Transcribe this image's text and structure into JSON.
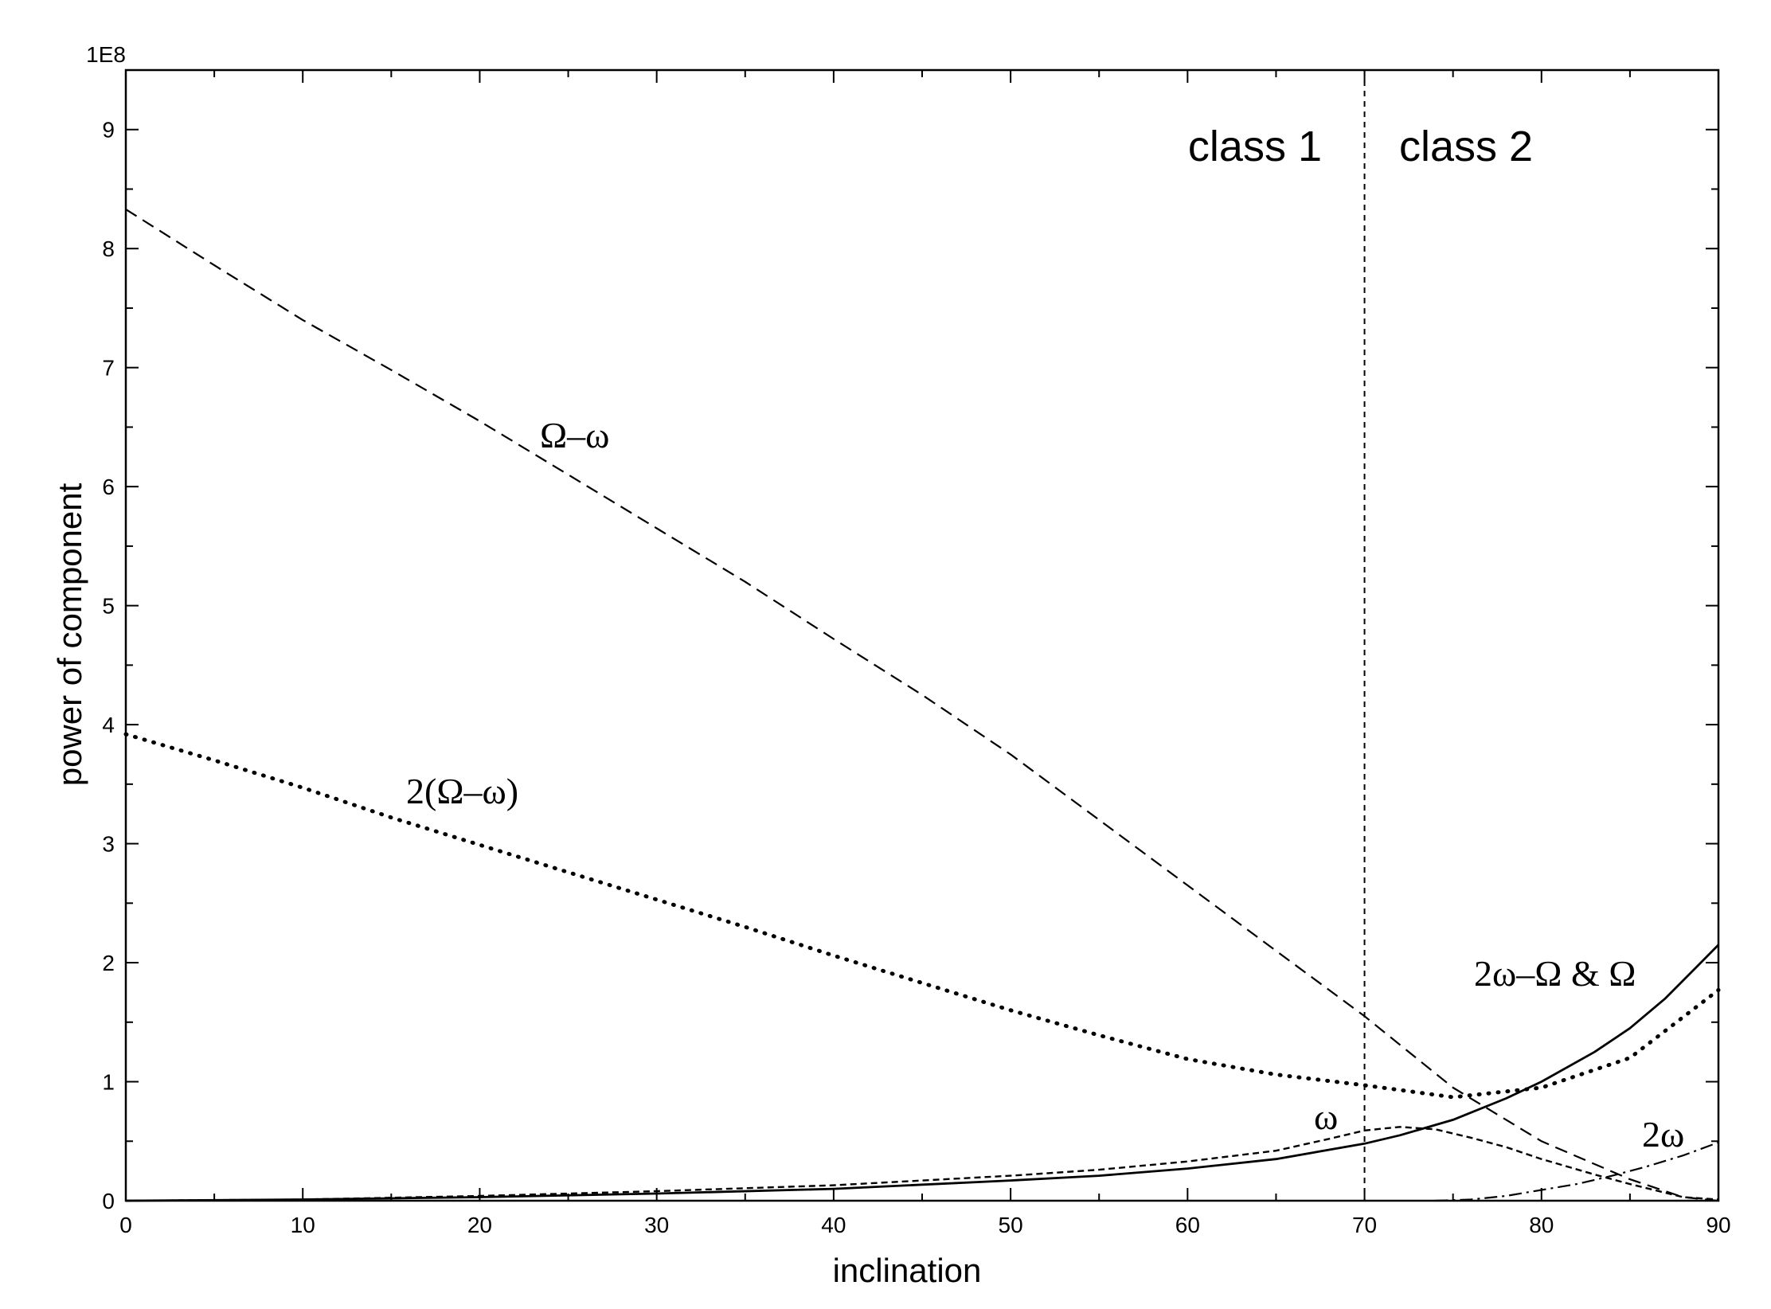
{
  "chart_data": {
    "type": "line",
    "xlabel": "inclination",
    "ylabel": "power of component",
    "y_multiplier_label": "1E8",
    "xlim": [
      0,
      90
    ],
    "ylim": [
      0,
      9.5
    ],
    "x_ticks": [
      "0",
      "10",
      "20",
      "30",
      "40",
      "50",
      "60",
      "70",
      "80",
      "90"
    ],
    "y_ticks": [
      "0",
      "1",
      "2",
      "3",
      "4",
      "5",
      "6",
      "7",
      "8",
      "9"
    ],
    "grid": false,
    "divider": {
      "x": 70
    },
    "region_labels": [
      "class 1",
      "class 2"
    ],
    "series": [
      {
        "name": "Ω–ω",
        "style": "dashed",
        "points": [
          [
            0,
            8.33
          ],
          [
            5,
            7.86
          ],
          [
            10,
            7.4
          ],
          [
            15,
            6.98
          ],
          [
            20,
            6.55
          ],
          [
            25,
            6.1
          ],
          [
            30,
            5.65
          ],
          [
            35,
            5.2
          ],
          [
            40,
            4.72
          ],
          [
            45,
            4.25
          ],
          [
            50,
            3.75
          ],
          [
            55,
            3.2
          ],
          [
            60,
            2.65
          ],
          [
            65,
            2.1
          ],
          [
            70,
            1.55
          ],
          [
            75,
            0.95
          ],
          [
            80,
            0.5
          ],
          [
            85,
            0.18
          ],
          [
            88,
            0.03
          ],
          [
            90,
            0.0
          ]
        ]
      },
      {
        "name": "2(Ω–ω)",
        "style": "dotted-thick",
        "points": [
          [
            0,
            3.92
          ],
          [
            5,
            3.7
          ],
          [
            10,
            3.47
          ],
          [
            15,
            3.22
          ],
          [
            20,
            2.99
          ],
          [
            25,
            2.76
          ],
          [
            30,
            2.53
          ],
          [
            35,
            2.3
          ],
          [
            40,
            2.06
          ],
          [
            45,
            1.83
          ],
          [
            50,
            1.6
          ],
          [
            55,
            1.39
          ],
          [
            60,
            1.19
          ],
          [
            65,
            1.06
          ],
          [
            70,
            0.97
          ],
          [
            75,
            0.87
          ],
          [
            80,
            0.95
          ],
          [
            85,
            1.2
          ],
          [
            90,
            1.77
          ]
        ]
      },
      {
        "name": "2ω–Ω & Ω",
        "style": "solid",
        "points": [
          [
            0,
            0.0
          ],
          [
            10,
            0.01
          ],
          [
            20,
            0.03
          ],
          [
            30,
            0.06
          ],
          [
            40,
            0.1
          ],
          [
            50,
            0.17
          ],
          [
            55,
            0.21
          ],
          [
            60,
            0.27
          ],
          [
            65,
            0.35
          ],
          [
            70,
            0.48
          ],
          [
            72,
            0.55
          ],
          [
            75,
            0.68
          ],
          [
            78,
            0.86
          ],
          [
            80,
            1.0
          ],
          [
            83,
            1.25
          ],
          [
            85,
            1.45
          ],
          [
            87,
            1.7
          ],
          [
            89,
            2.0
          ],
          [
            90,
            2.15
          ]
        ]
      },
      {
        "name": "ω",
        "style": "short-dash",
        "points": [
          [
            0,
            0.0
          ],
          [
            10,
            0.01
          ],
          [
            20,
            0.04
          ],
          [
            30,
            0.08
          ],
          [
            40,
            0.13
          ],
          [
            50,
            0.21
          ],
          [
            55,
            0.26
          ],
          [
            60,
            0.33
          ],
          [
            65,
            0.42
          ],
          [
            68,
            0.52
          ],
          [
            70,
            0.59
          ],
          [
            72,
            0.62
          ],
          [
            74,
            0.6
          ],
          [
            76,
            0.53
          ],
          [
            78,
            0.45
          ],
          [
            80,
            0.35
          ],
          [
            83,
            0.22
          ],
          [
            85,
            0.14
          ],
          [
            88,
            0.03
          ],
          [
            90,
            0.01
          ]
        ]
      },
      {
        "name": "2ω",
        "style": "dash-dot",
        "points": [
          [
            74,
            0.0
          ],
          [
            76,
            0.01
          ],
          [
            78,
            0.04
          ],
          [
            80,
            0.09
          ],
          [
            82,
            0.14
          ],
          [
            84,
            0.21
          ],
          [
            86,
            0.29
          ],
          [
            88,
            0.38
          ],
          [
            90,
            0.49
          ]
        ]
      }
    ]
  }
}
